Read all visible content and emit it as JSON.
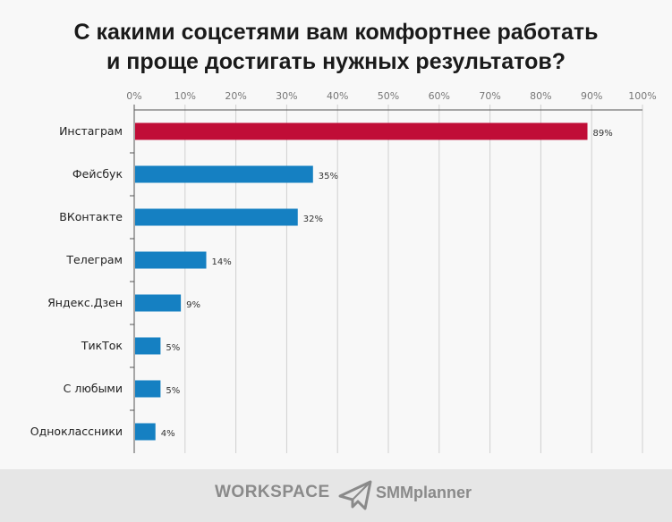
{
  "chart_data": {
    "type": "bar",
    "orientation": "horizontal",
    "title": "С какими соцсетями вам комфортнее работать и проще достигать нужных результатов?",
    "title_lines": [
      "С какими соцсетями вам комфортнее работать",
      "и проще достигать нужных результатов?"
    ],
    "categories": [
      "Инстаграм",
      "Фейсбук",
      "ВКонтакте",
      "Телеграм",
      "Яндекс.Дзен",
      "ТикТок",
      "С любыми",
      "Одноклассники"
    ],
    "values": [
      89,
      35,
      32,
      14,
      9,
      5,
      5,
      4
    ],
    "data_labels": [
      "89%",
      "35%",
      "32%",
      "14%",
      "9%",
      "5%",
      "5%",
      "4%"
    ],
    "xlim": [
      0,
      100
    ],
    "x_ticks": [
      "0%",
      "10%",
      "20%",
      "30%",
      "40%",
      "50%",
      "60%",
      "70%",
      "80%",
      "90%",
      "100%"
    ],
    "grid": true,
    "highlight_color": "#c00d37",
    "bar_color": "#1580c2"
  },
  "footer": {
    "logo_workspace": "WORKSPACE",
    "logo_smmplanner": "SMMplanner"
  }
}
